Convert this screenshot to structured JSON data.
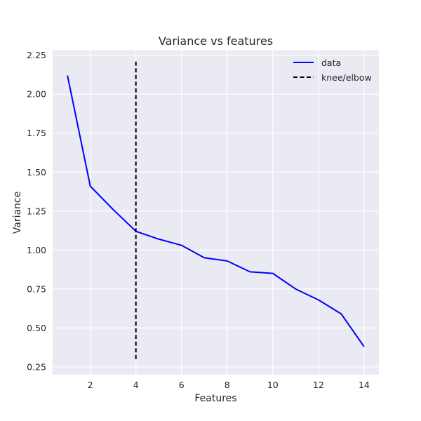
{
  "chart_data": {
    "type": "line",
    "title": "Variance vs features",
    "xlabel": "Features",
    "ylabel": "Variance",
    "xlim": [
      0.35,
      14.65
    ],
    "ylim": [
      0.2,
      2.28
    ],
    "xticks": [
      2,
      4,
      6,
      8,
      10,
      12,
      14
    ],
    "yticks": [
      0.25,
      0.5,
      0.75,
      1.0,
      1.25,
      1.5,
      1.75,
      2.0,
      2.25
    ],
    "xtick_labels": [
      "2",
      "4",
      "6",
      "8",
      "10",
      "12",
      "14"
    ],
    "ytick_labels": [
      "0.25",
      "0.50",
      "0.75",
      "1.00",
      "1.25",
      "1.50",
      "1.75",
      "2.00",
      "2.25"
    ],
    "grid": true,
    "legend_position": "top-right",
    "series": [
      {
        "name": "data",
        "color": "#0000ff",
        "style": "solid",
        "x": [
          1,
          2,
          3,
          4,
          5,
          6,
          7,
          8,
          9,
          10,
          11,
          12,
          13,
          14
        ],
        "y": [
          2.12,
          1.41,
          1.26,
          1.12,
          1.07,
          1.03,
          0.95,
          0.93,
          0.86,
          0.85,
          0.75,
          0.68,
          0.59,
          0.38
        ]
      },
      {
        "name": "knee/elbow",
        "color": "#000000",
        "style": "dashed",
        "x": [
          4,
          4
        ],
        "y": [
          0.3,
          2.21
        ]
      }
    ]
  }
}
